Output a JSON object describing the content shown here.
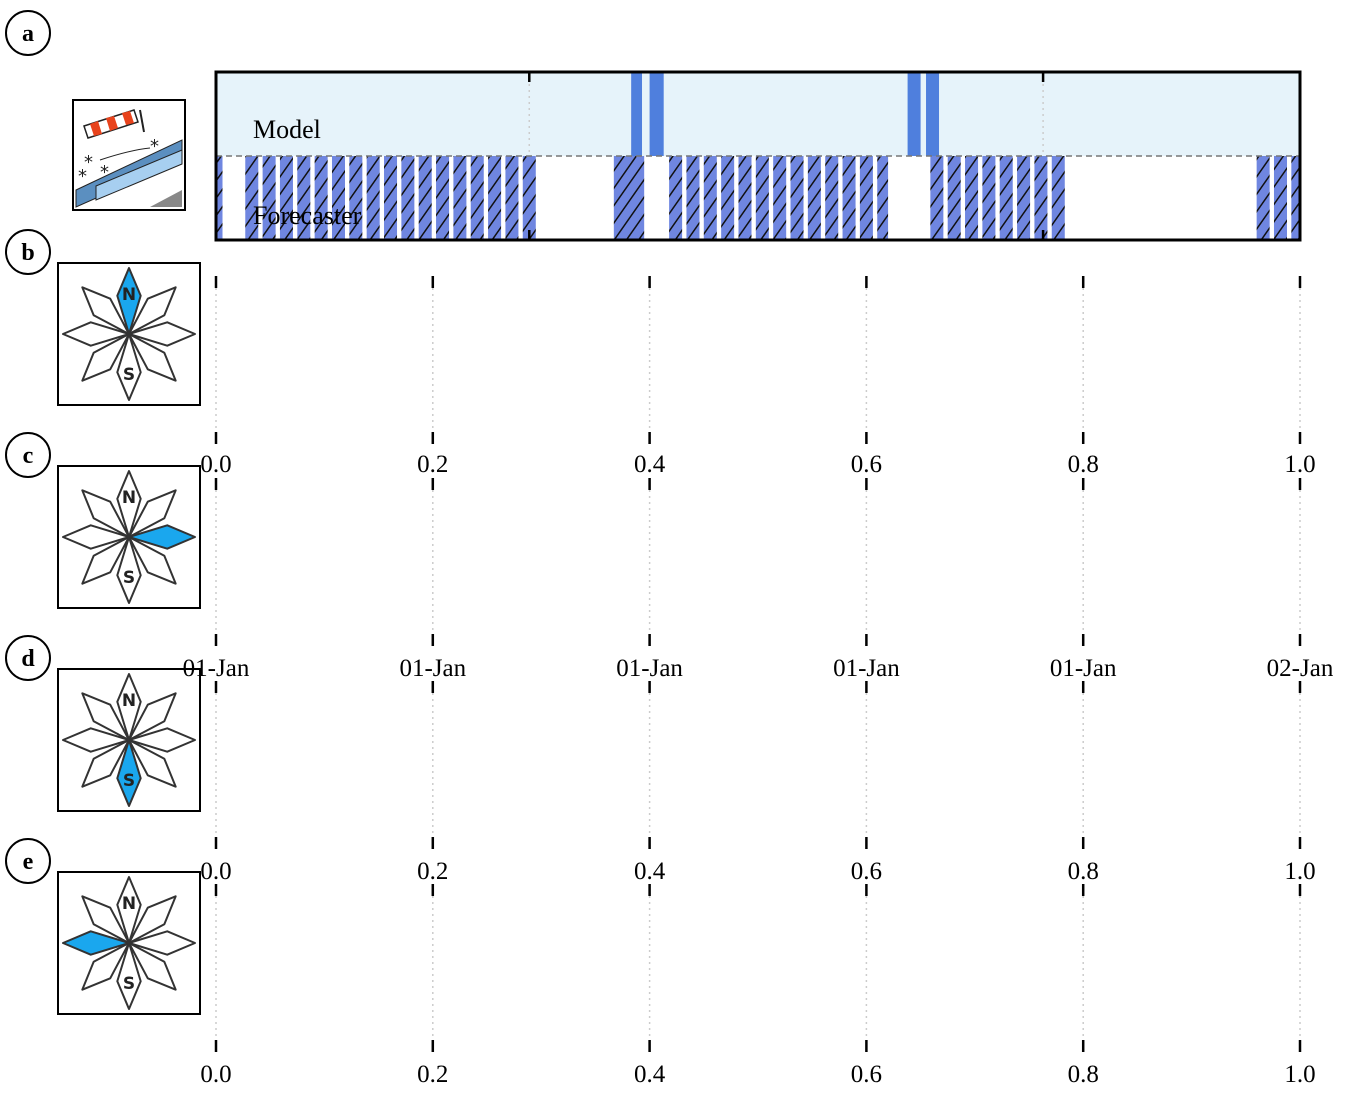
{
  "colors": {
    "model_bg": "#e6f3fa",
    "model_event": "#4f7fdd",
    "forecast_fill": "#6f86e0",
    "hatch_line": "#111111",
    "highlight": "#1aa7ee",
    "grid": "#cccccc"
  },
  "panels": [
    {
      "letter": "a",
      "icon": "windsock-snow-icon"
    },
    {
      "letter": "b",
      "icon": "compass-icon",
      "highlight": "N"
    },
    {
      "letter": "c",
      "icon": "compass-icon",
      "highlight": "E"
    },
    {
      "letter": "d",
      "icon": "compass-icon",
      "highlight": "S"
    },
    {
      "letter": "e",
      "icon": "compass-icon",
      "highlight": "W"
    }
  ],
  "compass_labels": {
    "north": "N",
    "south": "S"
  },
  "chart_data": [
    {
      "panel": "a",
      "type": "bar",
      "xlim": [
        0,
        1
      ],
      "rows": [
        {
          "label": "Model",
          "events": [
            [
              0.383,
              0.393
            ],
            [
              0.4,
              0.413
            ],
            [
              0.638,
              0.65
            ],
            [
              0.655,
              0.667
            ]
          ]
        },
        {
          "label": "Forecaster",
          "events": [
            [
              0.0,
              0.006
            ],
            [
              0.027,
              0.039
            ],
            [
              0.043,
              0.055
            ],
            [
              0.059,
              0.071
            ],
            [
              0.075,
              0.087
            ],
            [
              0.091,
              0.103
            ],
            [
              0.107,
              0.119
            ],
            [
              0.123,
              0.135
            ],
            [
              0.139,
              0.151
            ],
            [
              0.155,
              0.167
            ],
            [
              0.171,
              0.183
            ],
            [
              0.187,
              0.199
            ],
            [
              0.203,
              0.215
            ],
            [
              0.219,
              0.231
            ],
            [
              0.235,
              0.247
            ],
            [
              0.251,
              0.263
            ],
            [
              0.267,
              0.279
            ],
            [
              0.283,
              0.295
            ],
            [
              0.367,
              0.395
            ],
            [
              0.418,
              0.43
            ],
            [
              0.434,
              0.446
            ],
            [
              0.45,
              0.462
            ],
            [
              0.466,
              0.478
            ],
            [
              0.482,
              0.494
            ],
            [
              0.498,
              0.51
            ],
            [
              0.514,
              0.526
            ],
            [
              0.53,
              0.542
            ],
            [
              0.546,
              0.558
            ],
            [
              0.562,
              0.574
            ],
            [
              0.578,
              0.59
            ],
            [
              0.594,
              0.606
            ],
            [
              0.61,
              0.62
            ],
            [
              0.659,
              0.671
            ],
            [
              0.675,
              0.687
            ],
            [
              0.691,
              0.703
            ],
            [
              0.707,
              0.719
            ],
            [
              0.723,
              0.735
            ],
            [
              0.739,
              0.751
            ],
            [
              0.755,
              0.767
            ],
            [
              0.771,
              0.783
            ],
            [
              0.96,
              0.972
            ],
            [
              0.976,
              0.988
            ],
            [
              0.992,
              1.0
            ]
          ]
        }
      ]
    },
    {
      "panel": "b",
      "type": "bar",
      "xlim": [
        0,
        1
      ],
      "xticks": [
        0,
        0.2,
        0.4,
        0.6,
        0.8,
        1.0
      ],
      "xtick_labels": [
        "0.0",
        "0.2",
        "0.4",
        "0.6",
        "0.8",
        "1.0"
      ]
    },
    {
      "panel": "c",
      "type": "bar",
      "xlim": [
        0,
        1
      ],
      "xticks": [
        0,
        0.2,
        0.4,
        0.6,
        0.8,
        1.0
      ],
      "xtick_labels": [
        "01-Jan",
        "01-Jan",
        "01-Jan",
        "01-Jan",
        "01-Jan",
        "02-Jan"
      ]
    },
    {
      "panel": "d",
      "type": "bar",
      "xlim": [
        0,
        1
      ],
      "xticks": [
        0,
        0.2,
        0.4,
        0.6,
        0.8,
        1.0
      ],
      "xtick_labels": [
        "0.0",
        "0.2",
        "0.4",
        "0.6",
        "0.8",
        "1.0"
      ]
    },
    {
      "panel": "e",
      "type": "bar",
      "xlim": [
        0,
        1
      ],
      "xticks": [
        0,
        0.2,
        0.4,
        0.6,
        0.8,
        1.0
      ],
      "xtick_labels": [
        "0.0",
        "0.2",
        "0.4",
        "0.6",
        "0.8",
        "1.0"
      ]
    }
  ]
}
